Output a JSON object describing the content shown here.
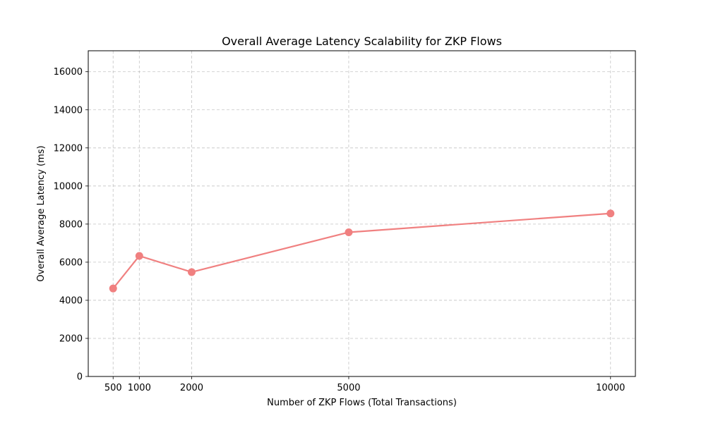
{
  "chart_data": {
    "type": "line",
    "title": "Overall Average Latency Scalability for ZKP Flows",
    "xlabel": "Number of ZKP Flows (Total Transactions)",
    "ylabel": "Overall Average Latency (ms)",
    "x": [
      500,
      1000,
      2000,
      5000,
      10000
    ],
    "series": [
      {
        "values": [
          4620,
          6330,
          5480,
          7570,
          8560
        ],
        "color": "#f08080"
      }
    ],
    "x_ticks": [
      500,
      1000,
      2000,
      5000,
      10000
    ],
    "x_tick_labels": [
      "500",
      "1000",
      "2000",
      "5000",
      "10000"
    ],
    "y_ticks": [
      0,
      2000,
      4000,
      6000,
      8000,
      10000,
      12000,
      14000,
      16000
    ],
    "y_tick_labels": [
      "0",
      "2000",
      "4000",
      "6000",
      "8000",
      "10000",
      "12000",
      "14000",
      "16000"
    ],
    "xlim": [
      25,
      10475
    ],
    "ylim": [
      0,
      17100
    ],
    "grid": true,
    "marker": "circle"
  }
}
